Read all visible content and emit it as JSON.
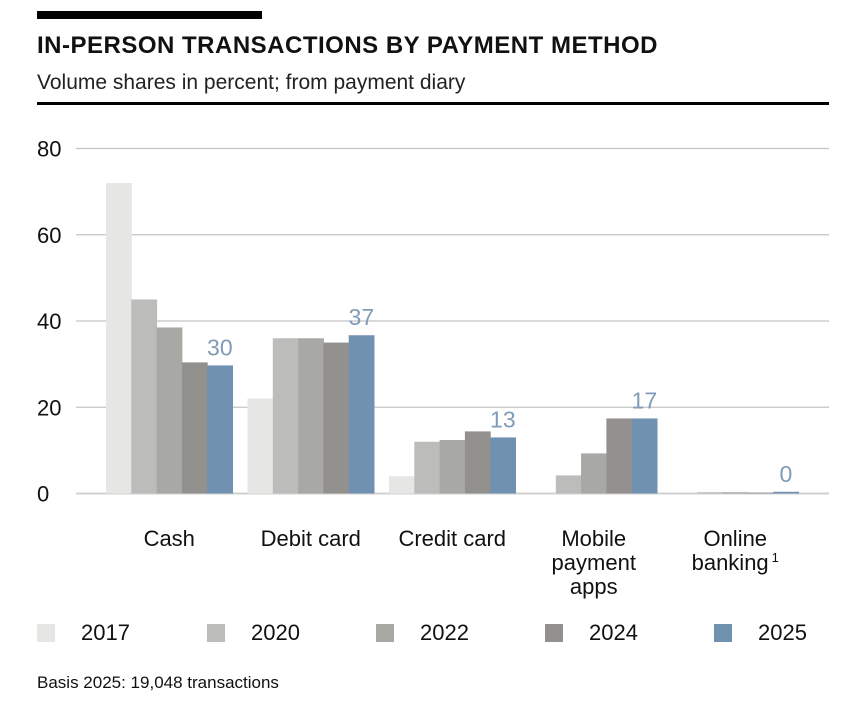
{
  "title": "IN-PERSON TRANSACTIONS BY PAYMENT METHOD",
  "subtitle": "Volume shares in percent; from payment diary",
  "note": "Basis 2025: 19,048 transactions",
  "chart_data": {
    "type": "bar",
    "title": "IN-PERSON TRANSACTIONS BY PAYMENT METHOD",
    "ylabel": "Volume shares in percent",
    "ylim": [
      0,
      80
    ],
    "yticks": [
      "0",
      "20",
      "40",
      "60",
      "80"
    ],
    "grid": true,
    "legend_placement": "bottom",
    "categories": [
      [
        "Cash"
      ],
      [
        "Debit card"
      ],
      [
        "Credit card"
      ],
      [
        "Mobile",
        "payment",
        "apps"
      ],
      [
        "Online",
        "banking"
      ]
    ],
    "category_footnotes": [
      "",
      "",
      "",
      "",
      "1"
    ],
    "series": [
      {
        "name": "2017",
        "color": "#e6e6e5",
        "values": [
          72,
          22,
          4,
          0,
          0
        ]
      },
      {
        "name": "2020",
        "color": "#bcbcbb",
        "values": [
          45,
          36,
          12,
          4.2,
          0.3
        ]
      },
      {
        "name": "2022",
        "color": "#a8a8a5",
        "values": [
          38.5,
          36,
          12.4,
          9.3,
          0.3
        ]
      },
      {
        "name": "2024",
        "color": "#93918e",
        "values": [
          30.4,
          35,
          14.4,
          17.4,
          0.2
        ]
      },
      {
        "name": "2025",
        "color": "#7191b0",
        "values": [
          29.7,
          36.7,
          13,
          17.4,
          0.4
        ]
      }
    ],
    "data_labels": {
      "series": "2025",
      "labels": [
        "30",
        "37",
        "13",
        "17",
        "0"
      ],
      "color": "#7f9bb8"
    }
  }
}
